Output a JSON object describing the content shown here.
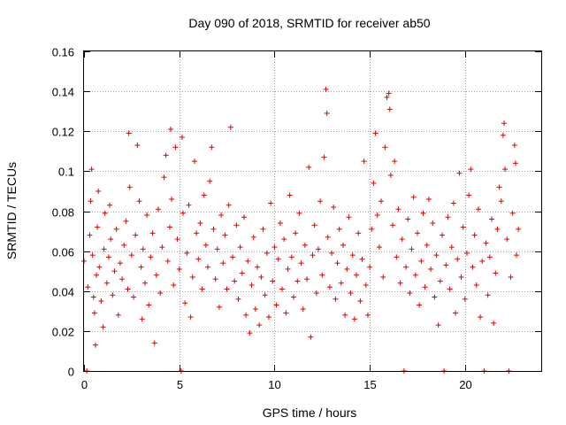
{
  "chart_data": {
    "type": "scatter",
    "title": "Day 090 of 2018, SRMTID for receiver ab50",
    "xlabel": "GPS time / hours",
    "ylabel": "SRMTID / TECUs",
    "xlim": [
      0,
      24.0
    ],
    "ylim": [
      0,
      0.16
    ],
    "x_ticks": [
      0,
      5,
      10,
      15,
      20
    ],
    "x_tick_labels": [
      "0",
      "5",
      "10",
      "15",
      "20"
    ],
    "y_ticks": [
      0,
      0.02,
      0.04,
      0.06,
      0.08,
      0.1,
      0.12,
      0.14,
      0.16
    ],
    "y_tick_labels": [
      "0",
      "0.02",
      "0.04",
      "0.06",
      "0.08",
      "0.1",
      "0.12",
      "0.14",
      "0.16"
    ],
    "grid": true,
    "marker": "plus",
    "color": "#e00000",
    "series": [
      {
        "name": "SRMTID",
        "points": [
          [
            0.0,
            0.055
          ],
          [
            0.15,
            0.0
          ],
          [
            0.2,
            0.042
          ],
          [
            0.3,
            0.068
          ],
          [
            0.35,
            0.085
          ],
          [
            0.4,
            0.101
          ],
          [
            0.45,
            0.058
          ],
          [
            0.5,
            0.037
          ],
          [
            0.55,
            0.029
          ],
          [
            0.6,
            0.013
          ],
          [
            0.65,
            0.048
          ],
          [
            0.7,
            0.072
          ],
          [
            0.75,
            0.09
          ],
          [
            0.8,
            0.052
          ],
          [
            0.9,
            0.035
          ],
          [
            1.0,
            0.022
          ],
          [
            1.05,
            0.061
          ],
          [
            1.1,
            0.079
          ],
          [
            1.2,
            0.044
          ],
          [
            1.3,
            0.057
          ],
          [
            1.35,
            0.083
          ],
          [
            1.4,
            0.066
          ],
          [
            1.5,
            0.038
          ],
          [
            1.6,
            0.05
          ],
          [
            1.7,
            0.071
          ],
          [
            1.8,
            0.028
          ],
          [
            1.9,
            0.054
          ],
          [
            2.0,
            0.046
          ],
          [
            2.1,
            0.063
          ],
          [
            2.2,
            0.075
          ],
          [
            2.3,
            0.041
          ],
          [
            2.35,
            0.119
          ],
          [
            2.4,
            0.092
          ],
          [
            2.5,
            0.058
          ],
          [
            2.6,
            0.037
          ],
          [
            2.7,
            0.068
          ],
          [
            2.8,
            0.113
          ],
          [
            2.9,
            0.085
          ],
          [
            3.0,
            0.052
          ],
          [
            3.05,
            0.026
          ],
          [
            3.1,
            0.061
          ],
          [
            3.2,
            0.044
          ],
          [
            3.3,
            0.078
          ],
          [
            3.4,
            0.033
          ],
          [
            3.5,
            0.057
          ],
          [
            3.6,
            0.069
          ],
          [
            3.7,
            0.014
          ],
          [
            3.8,
            0.048
          ],
          [
            3.9,
            0.081
          ],
          [
            4.0,
            0.039
          ],
          [
            4.1,
            0.062
          ],
          [
            4.2,
            0.097
          ],
          [
            4.3,
            0.108
          ],
          [
            4.4,
            0.055
          ],
          [
            4.5,
            0.072
          ],
          [
            4.55,
            0.121
          ],
          [
            4.6,
            0.086
          ],
          [
            4.7,
            0.043
          ],
          [
            4.8,
            0.112
          ],
          [
            4.9,
            0.066
          ],
          [
            5.0,
            0.051
          ],
          [
            5.1,
            0.0
          ],
          [
            5.15,
            0.117
          ],
          [
            5.2,
            0.079
          ],
          [
            5.3,
            0.034
          ],
          [
            5.4,
            0.059
          ],
          [
            5.5,
            0.083
          ],
          [
            5.6,
            0.027
          ],
          [
            5.7,
            0.047
          ],
          [
            5.8,
            0.105
          ],
          [
            5.9,
            0.069
          ],
          [
            6.0,
            0.056
          ],
          [
            6.1,
            0.074
          ],
          [
            6.2,
            0.041
          ],
          [
            6.3,
            0.088
          ],
          [
            6.4,
            0.063
          ],
          [
            6.5,
            0.052
          ],
          [
            6.6,
            0.095
          ],
          [
            6.7,
            0.112
          ],
          [
            6.8,
            0.071
          ],
          [
            6.9,
            0.046
          ],
          [
            7.0,
            0.061
          ],
          [
            7.1,
            0.032
          ],
          [
            7.2,
            0.078
          ],
          [
            7.3,
            0.054
          ],
          [
            7.4,
            0.068
          ],
          [
            7.5,
            0.041
          ],
          [
            7.6,
            0.083
          ],
          [
            7.7,
            0.122
          ],
          [
            7.8,
            0.057
          ],
          [
            7.9,
            0.045
          ],
          [
            8.0,
            0.073
          ],
          [
            8.1,
            0.036
          ],
          [
            8.2,
            0.062
          ],
          [
            8.3,
            0.049
          ],
          [
            8.4,
            0.077
          ],
          [
            8.5,
            0.028
          ],
          [
            8.6,
            0.055
          ],
          [
            8.7,
            0.019
          ],
          [
            8.8,
            0.043
          ],
          [
            8.9,
            0.067
          ],
          [
            9.0,
            0.031
          ],
          [
            9.1,
            0.052
          ],
          [
            9.2,
            0.023
          ],
          [
            9.3,
            0.047
          ],
          [
            9.4,
            0.071
          ],
          [
            9.5,
            0.038
          ],
          [
            9.6,
            0.059
          ],
          [
            9.7,
            0.027
          ],
          [
            9.8,
            0.084
          ],
          [
            9.9,
            0.045
          ],
          [
            10.0,
            0.062
          ],
          [
            10.1,
            0.033
          ],
          [
            10.2,
            0.056
          ],
          [
            10.3,
            0.074
          ],
          [
            10.4,
            0.041
          ],
          [
            10.5,
            0.066
          ],
          [
            10.6,
            0.029
          ],
          [
            10.7,
            0.051
          ],
          [
            10.8,
            0.088
          ],
          [
            10.9,
            0.057
          ],
          [
            11.0,
            0.037
          ],
          [
            11.1,
            0.069
          ],
          [
            11.2,
            0.045
          ],
          [
            11.3,
            0.079
          ],
          [
            11.4,
            0.054
          ],
          [
            11.5,
            0.031
          ],
          [
            11.6,
            0.063
          ],
          [
            11.7,
            0.046
          ],
          [
            11.8,
            0.102
          ],
          [
            11.9,
            0.017
          ],
          [
            12.0,
            0.058
          ],
          [
            12.1,
            0.073
          ],
          [
            12.2,
            0.039
          ],
          [
            12.3,
            0.061
          ],
          [
            12.4,
            0.085
          ],
          [
            12.5,
            0.048
          ],
          [
            12.6,
            0.107
          ],
          [
            12.7,
            0.141
          ],
          [
            12.75,
            0.129
          ],
          [
            12.8,
            0.067
          ],
          [
            12.9,
            0.042
          ],
          [
            13.0,
            0.059
          ],
          [
            13.1,
            0.082
          ],
          [
            13.2,
            0.036
          ],
          [
            13.3,
            0.054
          ],
          [
            13.4,
            0.071
          ],
          [
            13.5,
            0.044
          ],
          [
            13.6,
            0.063
          ],
          [
            13.7,
            0.028
          ],
          [
            13.8,
            0.051
          ],
          [
            13.9,
            0.077
          ],
          [
            14.0,
            0.039
          ],
          [
            14.1,
            0.058
          ],
          [
            14.2,
            0.026
          ],
          [
            14.3,
            0.048
          ],
          [
            14.4,
            0.069
          ],
          [
            14.5,
            0.035
          ],
          [
            14.6,
            0.056
          ],
          [
            14.7,
            0.105
          ],
          [
            14.8,
            0.043
          ],
          [
            14.9,
            0.028
          ],
          [
            15.0,
            0.052
          ],
          [
            15.1,
            0.071
          ],
          [
            15.2,
            0.094
          ],
          [
            15.3,
            0.119
          ],
          [
            15.4,
            0.078
          ],
          [
            15.5,
            0.062
          ],
          [
            15.6,
            0.085
          ],
          [
            15.7,
            0.047
          ],
          [
            15.8,
            0.112
          ],
          [
            15.9,
            0.137
          ],
          [
            16.0,
            0.139
          ],
          [
            16.05,
            0.131
          ],
          [
            16.1,
            0.098
          ],
          [
            16.2,
            0.073
          ],
          [
            16.3,
            0.105
          ],
          [
            16.4,
            0.057
          ],
          [
            16.5,
            0.081
          ],
          [
            16.6,
            0.044
          ],
          [
            16.7,
            0.066
          ],
          [
            16.8,
            0.0
          ],
          [
            16.9,
            0.052
          ],
          [
            17.0,
            0.076
          ],
          [
            17.1,
            0.039
          ],
          [
            17.2,
            0.061
          ],
          [
            17.3,
            0.087
          ],
          [
            17.4,
            0.048
          ],
          [
            17.5,
            0.069
          ],
          [
            17.6,
            0.033
          ],
          [
            17.7,
            0.055
          ],
          [
            17.8,
            0.079
          ],
          [
            17.9,
            0.042
          ],
          [
            18.0,
            0.063
          ],
          [
            18.1,
            0.086
          ],
          [
            18.2,
            0.051
          ],
          [
            18.3,
            0.074
          ],
          [
            18.4,
            0.037
          ],
          [
            18.5,
            0.058
          ],
          [
            18.6,
            0.023
          ],
          [
            18.7,
            0.045
          ],
          [
            18.8,
            0.068
          ],
          [
            18.9,
            0.0
          ],
          [
            19.0,
            0.053
          ],
          [
            19.1,
            0.077
          ],
          [
            19.2,
            0.041
          ],
          [
            19.3,
            0.062
          ],
          [
            19.4,
            0.084
          ],
          [
            19.5,
            0.029
          ],
          [
            19.6,
            0.056
          ],
          [
            19.7,
            0.099
          ],
          [
            19.8,
            0.047
          ],
          [
            19.9,
            0.072
          ],
          [
            20.0,
            0.036
          ],
          [
            20.1,
            0.059
          ],
          [
            20.2,
            0.088
          ],
          [
            20.3,
            0.101
          ],
          [
            20.4,
            0.052
          ],
          [
            20.5,
            0.068
          ],
          [
            20.6,
            0.043
          ],
          [
            20.7,
            0.081
          ],
          [
            20.8,
            0.027
          ],
          [
            20.9,
            0.055
          ],
          [
            21.0,
            0.0
          ],
          [
            21.1,
            0.064
          ],
          [
            21.2,
            0.038
          ],
          [
            21.3,
            0.057
          ],
          [
            21.4,
            0.076
          ],
          [
            21.5,
            0.024
          ],
          [
            21.6,
            0.049
          ],
          [
            21.7,
            0.071
          ],
          [
            21.8,
            0.092
          ],
          [
            21.9,
            0.085
          ],
          [
            22.0,
            0.118
          ],
          [
            22.05,
            0.124
          ],
          [
            22.1,
            0.101
          ],
          [
            22.2,
            0.066
          ],
          [
            22.3,
            0.0
          ],
          [
            22.4,
            0.047
          ],
          [
            22.5,
            0.079
          ],
          [
            22.6,
            0.113
          ],
          [
            22.65,
            0.104
          ],
          [
            22.7,
            0.058
          ],
          [
            22.8,
            0.071
          ]
        ]
      }
    ]
  }
}
